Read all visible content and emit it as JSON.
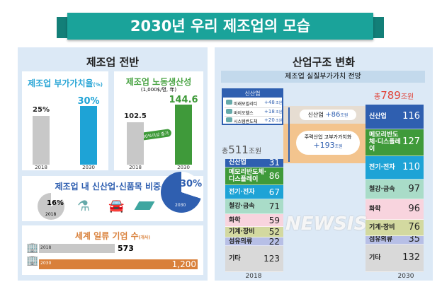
{
  "title": "2030년 우리 제조업의 모습",
  "left": {
    "title": "제조업 전반",
    "value_added": {
      "title": "제조업 부가가치율",
      "unit": "(%)",
      "years": [
        "2018",
        "2030"
      ],
      "labels": [
        "25%",
        "30%"
      ]
    },
    "productivity": {
      "title": "제조업 노동생산성",
      "unit": "(1,000$/명, 年)",
      "years": [
        "2018",
        "2030"
      ],
      "labels": [
        "102.5",
        "144.6"
      ],
      "badge": "40%이상 증가"
    },
    "new_share": {
      "title": "제조업 내 신산업·신품목 비중",
      "unit": "(%)",
      "years": [
        "2018",
        "2030"
      ],
      "labels": [
        "16%",
        "30%"
      ]
    },
    "world_class": {
      "title": "세계 일류 기업 수",
      "unit": "(개사)",
      "years": [
        "2018",
        "2030"
      ],
      "labels": [
        "573",
        "1,200"
      ]
    }
  },
  "right": {
    "title": "산업구조 변화",
    "subtitle": "제조업 실질부가가치 전망",
    "new_box": {
      "title": "신산업",
      "items": [
        {
          "name": "미래모빌리티",
          "value": "+48",
          "unit": "조원"
        },
        {
          "name": "바이오헬스",
          "value": "+18",
          "unit": "조원"
        },
        {
          "name": "시스템반도체",
          "value": "+20",
          "unit": "조원"
        }
      ]
    },
    "total_2018": {
      "prefix": "총",
      "value": "511",
      "unit": "조원"
    },
    "total_2030": {
      "prefix": "총",
      "value": "789",
      "unit": "조원"
    },
    "bridge": [
      {
        "label": "신산업",
        "value": "+86",
        "unit": "조원"
      },
      {
        "label": "주력산업 고부가가치화",
        "value": "+193",
        "unit": "조원"
      }
    ],
    "years": [
      "2018",
      "2030"
    ]
  },
  "watermark": "NEWSIS",
  "colors": {
    "teal": "#1aa39a",
    "blue": "#2f5fb0",
    "green": "#3f9a3a",
    "cyan": "#1ea3d6",
    "orange": "#d9803a",
    "gray": "#c8c8c8"
  },
  "chart_data": [
    {
      "type": "bar",
      "title": "제조업 부가가치율(%)",
      "categories": [
        "2018",
        "2030"
      ],
      "values": [
        25,
        30
      ]
    },
    {
      "type": "bar",
      "title": "제조업 노동생산성",
      "ylabel": "(1,000$/명, 年)",
      "categories": [
        "2018",
        "2030"
      ],
      "values": [
        102.5,
        144.6
      ]
    },
    {
      "type": "pie",
      "title": "제조업 내 신산업·신품목 비중(%)",
      "categories": [
        "2018",
        "2030"
      ],
      "values": [
        16,
        30
      ]
    },
    {
      "type": "bar",
      "orientation": "horizontal",
      "title": "세계 일류 기업 수(개사)",
      "categories": [
        "2018",
        "2030"
      ],
      "values": [
        573,
        1200
      ]
    },
    {
      "type": "bar",
      "stacked": true,
      "title": "제조업 실질부가가치 전망",
      "ylabel": "조원",
      "categories": [
        "2018",
        "2030"
      ],
      "series": [
        {
          "name": "신산업",
          "values": [
            31,
            116
          ],
          "color": "#2f5fb0"
        },
        {
          "name": "메모리반도체·디스플레이",
          "values": [
            86,
            127
          ],
          "color": "#3f9a3a"
        },
        {
          "name": "전기·전자",
          "values": [
            67,
            110
          ],
          "color": "#1ea3d6"
        },
        {
          "name": "철강·금속",
          "values": [
            71,
            97
          ],
          "color": "#a9dcc8"
        },
        {
          "name": "화학",
          "values": [
            59,
            96
          ],
          "color": "#f8d4de"
        },
        {
          "name": "기계·장비",
          "values": [
            52,
            76
          ],
          "color": "#d3d9a0"
        },
        {
          "name": "섬유의류",
          "values": [
            22,
            35
          ],
          "color": "#b7bfe6"
        },
        {
          "name": "기타",
          "values": [
            123,
            132
          ],
          "color": "#d9d9d9"
        }
      ]
    }
  ]
}
